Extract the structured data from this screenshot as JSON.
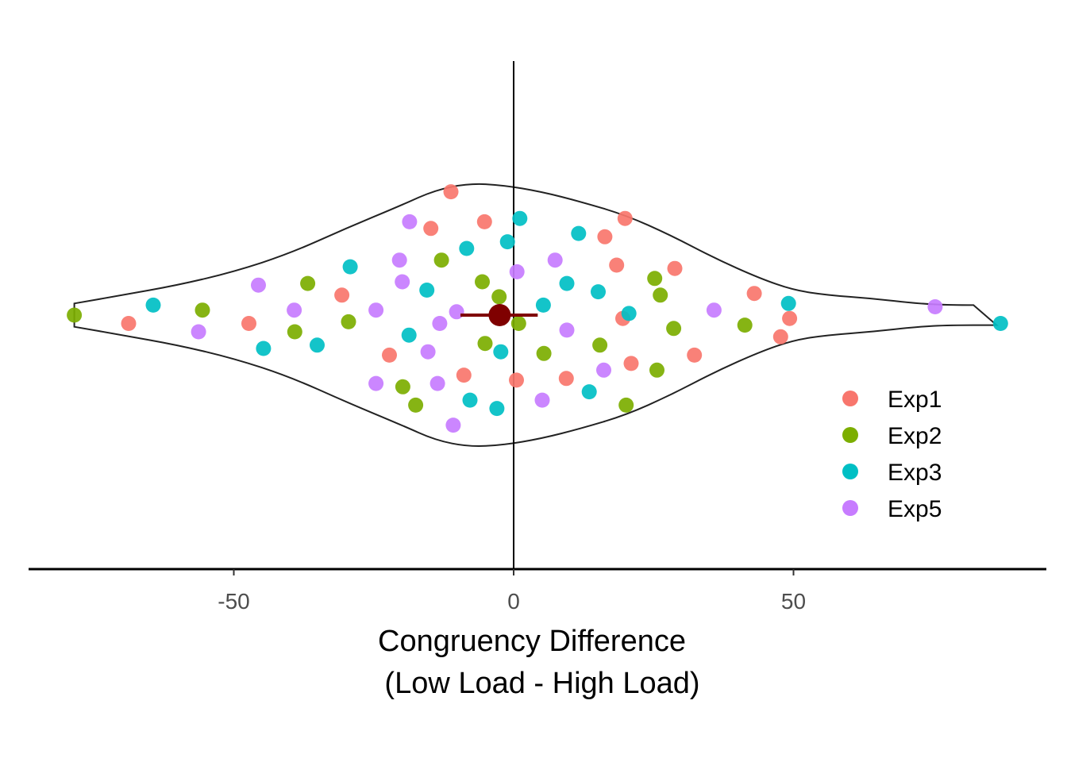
{
  "chart_data": {
    "type": "scatter",
    "subtype": "violin-with-jittered-points",
    "title": "",
    "xlabel_line1": "Congruency Difference",
    "xlabel_line2": "(Low Load - High Load)",
    "ylabel": "",
    "xlim": [
      -87,
      95
    ],
    "x_ticks": [
      -50,
      0,
      50
    ],
    "x_tick_labels": [
      "-50",
      "0",
      "50"
    ],
    "grid": false,
    "legend_position": "right",
    "vertical_reference_line": 0,
    "summary": {
      "mean": -2.5,
      "ci_low": -9.5,
      "ci_high": 4.3,
      "color": "#7f0000"
    },
    "series": [
      {
        "name": "Exp1",
        "color": "#f8766d",
        "points": [
          [
            -11.2,
            0.74
          ],
          [
            -5.2,
            0.56
          ],
          [
            19.9,
            0.58
          ],
          [
            -14.8,
            0.52
          ],
          [
            16.3,
            0.47
          ],
          [
            18.4,
            0.3
          ],
          [
            28.8,
            0.28
          ],
          [
            -30.7,
            0.12
          ],
          [
            43,
            0.13
          ],
          [
            -68.8,
            -0.05
          ],
          [
            -47.3,
            -0.05
          ],
          [
            19.5,
            -0.02
          ],
          [
            49.3,
            -0.02
          ],
          [
            47.7,
            -0.13
          ],
          [
            32.3,
            -0.24
          ],
          [
            -22.2,
            -0.24
          ],
          [
            21,
            -0.29
          ],
          [
            -8.9,
            -0.36
          ],
          [
            0.5,
            -0.39
          ],
          [
            9.4,
            -0.38
          ]
        ]
      },
      {
        "name": "Exp2",
        "color": "#7cae00",
        "points": [
          [
            -78.5,
            0.0
          ],
          [
            -55.6,
            0.03
          ],
          [
            -36.8,
            0.19
          ],
          [
            -12.9,
            0.33
          ],
          [
            -5.6,
            0.2
          ],
          [
            -2.6,
            0.11
          ],
          [
            25.2,
            0.22
          ],
          [
            26.2,
            0.12
          ],
          [
            -29.5,
            -0.04
          ],
          [
            -39.1,
            -0.1
          ],
          [
            0.9,
            -0.05
          ],
          [
            28.6,
            -0.08
          ],
          [
            41.3,
            -0.06
          ],
          [
            -5.1,
            -0.17
          ],
          [
            15.4,
            -0.18
          ],
          [
            5.4,
            -0.23
          ],
          [
            25.6,
            -0.33
          ],
          [
            -19.8,
            -0.43
          ],
          [
            -17.5,
            -0.54
          ],
          [
            20.1,
            -0.54
          ]
        ]
      },
      {
        "name": "Exp3",
        "color": "#00bfc4",
        "points": [
          [
            -64.4,
            0.06
          ],
          [
            1.1,
            0.58
          ],
          [
            11.6,
            0.49
          ],
          [
            -1.1,
            0.44
          ],
          [
            -8.4,
            0.4
          ],
          [
            -29.2,
            0.29
          ],
          [
            -15.5,
            0.15
          ],
          [
            9.5,
            0.19
          ],
          [
            15.1,
            0.14
          ],
          [
            5.3,
            0.06
          ],
          [
            20.6,
            0.01
          ],
          [
            49.1,
            0.07
          ],
          [
            87,
            -0.05
          ],
          [
            -44.7,
            -0.2
          ],
          [
            -35.1,
            -0.18
          ],
          [
            -18.7,
            -0.12
          ],
          [
            -2.3,
            -0.22
          ],
          [
            13.5,
            -0.46
          ],
          [
            -7.8,
            -0.51
          ],
          [
            -3,
            -0.56
          ]
        ]
      },
      {
        "name": "Exp5",
        "color": "#c77cff",
        "points": [
          [
            -18.6,
            0.56
          ],
          [
            -20.4,
            0.33
          ],
          [
            7.4,
            0.33
          ],
          [
            0.6,
            0.26
          ],
          [
            -19.9,
            0.2
          ],
          [
            -45.6,
            0.18
          ],
          [
            -39.2,
            0.03
          ],
          [
            -24.6,
            0.03
          ],
          [
            -10.2,
            0.02
          ],
          [
            35.8,
            0.03
          ],
          [
            75.3,
            0.05
          ],
          [
            -56.3,
            -0.1
          ],
          [
            -13.2,
            -0.05
          ],
          [
            9.5,
            -0.09
          ],
          [
            -15.3,
            -0.22
          ],
          [
            16.1,
            -0.33
          ],
          [
            -24.6,
            -0.41
          ],
          [
            -13.6,
            -0.41
          ],
          [
            5.1,
            -0.51
          ],
          [
            -10.8,
            -0.66
          ]
        ]
      }
    ],
    "violin_outline": [
      [
        -78.5,
        0.07
      ],
      [
        -70,
        0.12
      ],
      [
        -60,
        0.18
      ],
      [
        -50,
        0.26
      ],
      [
        -40,
        0.37
      ],
      [
        -30,
        0.52
      ],
      [
        -20,
        0.66
      ],
      [
        -14,
        0.75
      ],
      [
        -8,
        0.79
      ],
      [
        -2,
        0.78
      ],
      [
        5,
        0.74
      ],
      [
        12,
        0.68
      ],
      [
        20,
        0.6
      ],
      [
        28,
        0.48
      ],
      [
        36,
        0.34
      ],
      [
        44,
        0.22
      ],
      [
        50,
        0.15
      ],
      [
        56,
        0.12
      ],
      [
        64,
        0.1
      ],
      [
        72,
        0.07
      ],
      [
        78,
        0.06
      ],
      [
        86.3,
        0.06
      ]
    ]
  }
}
